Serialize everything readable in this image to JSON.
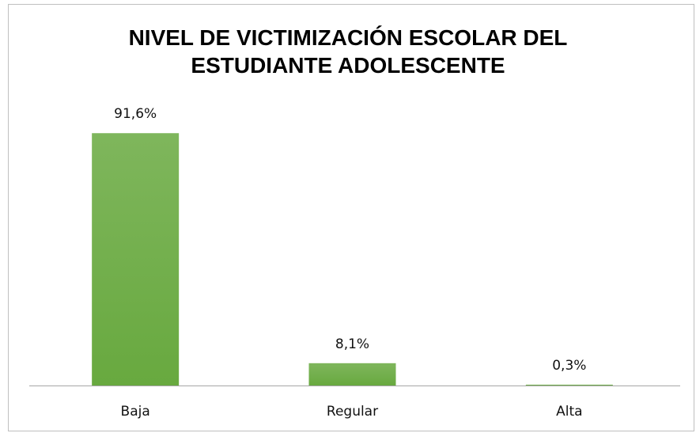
{
  "chart_data": {
    "type": "bar",
    "title": "NIVEL DE VICTIMIZACIÓN ESCOLAR DEL ESTUDIANTE ADOLESCENTE",
    "categories": [
      "Baja",
      "Regular",
      "Alta"
    ],
    "values": [
      91.6,
      8.1,
      0.3
    ],
    "value_labels": [
      "91,6%",
      "8,1%",
      "0,3%"
    ],
    "color": "#68a93f"
  }
}
